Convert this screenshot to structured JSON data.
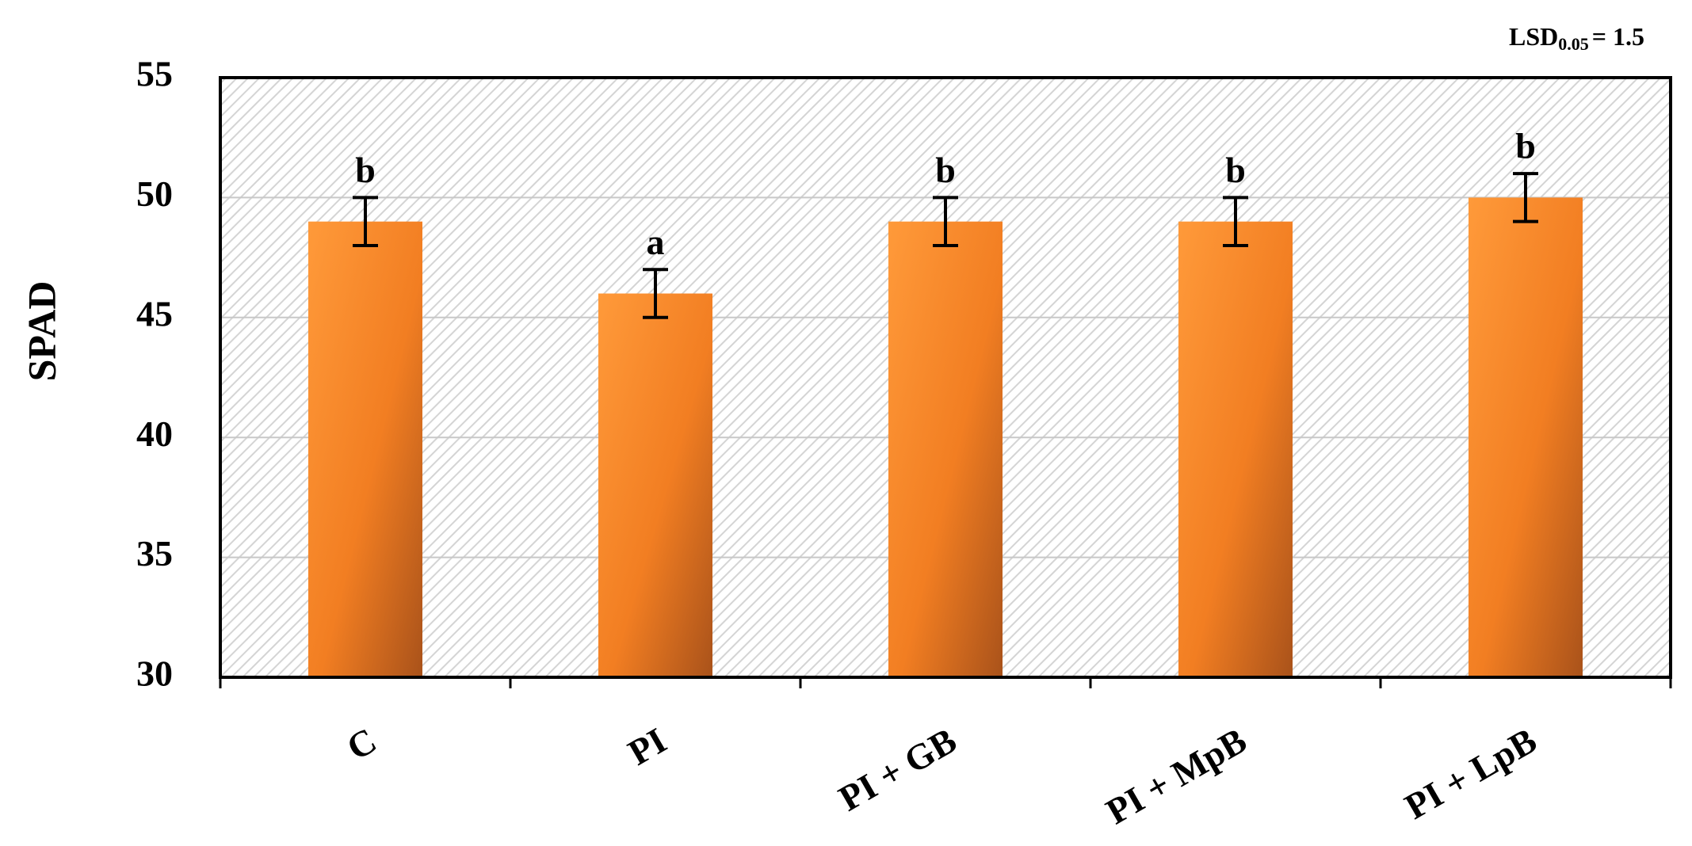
{
  "chart_data": {
    "type": "bar",
    "y_label": "SPAD",
    "annotation": [
      "LSD",
      "0.05",
      "= 1.5"
    ],
    "categories": [
      "C",
      "PI",
      "PI + GB",
      "PI + MpB",
      "PI + LpB"
    ],
    "values": [
      49,
      46,
      49,
      49,
      50
    ],
    "errors": [
      1,
      1,
      1,
      1,
      1
    ],
    "letters": [
      "b",
      "a",
      "b",
      "b",
      "b"
    ],
    "color": "#f7862a",
    "ylim": [
      30,
      55
    ],
    "yticks": [
      30,
      35,
      40,
      45,
      50,
      55
    ],
    "grid": true
  }
}
